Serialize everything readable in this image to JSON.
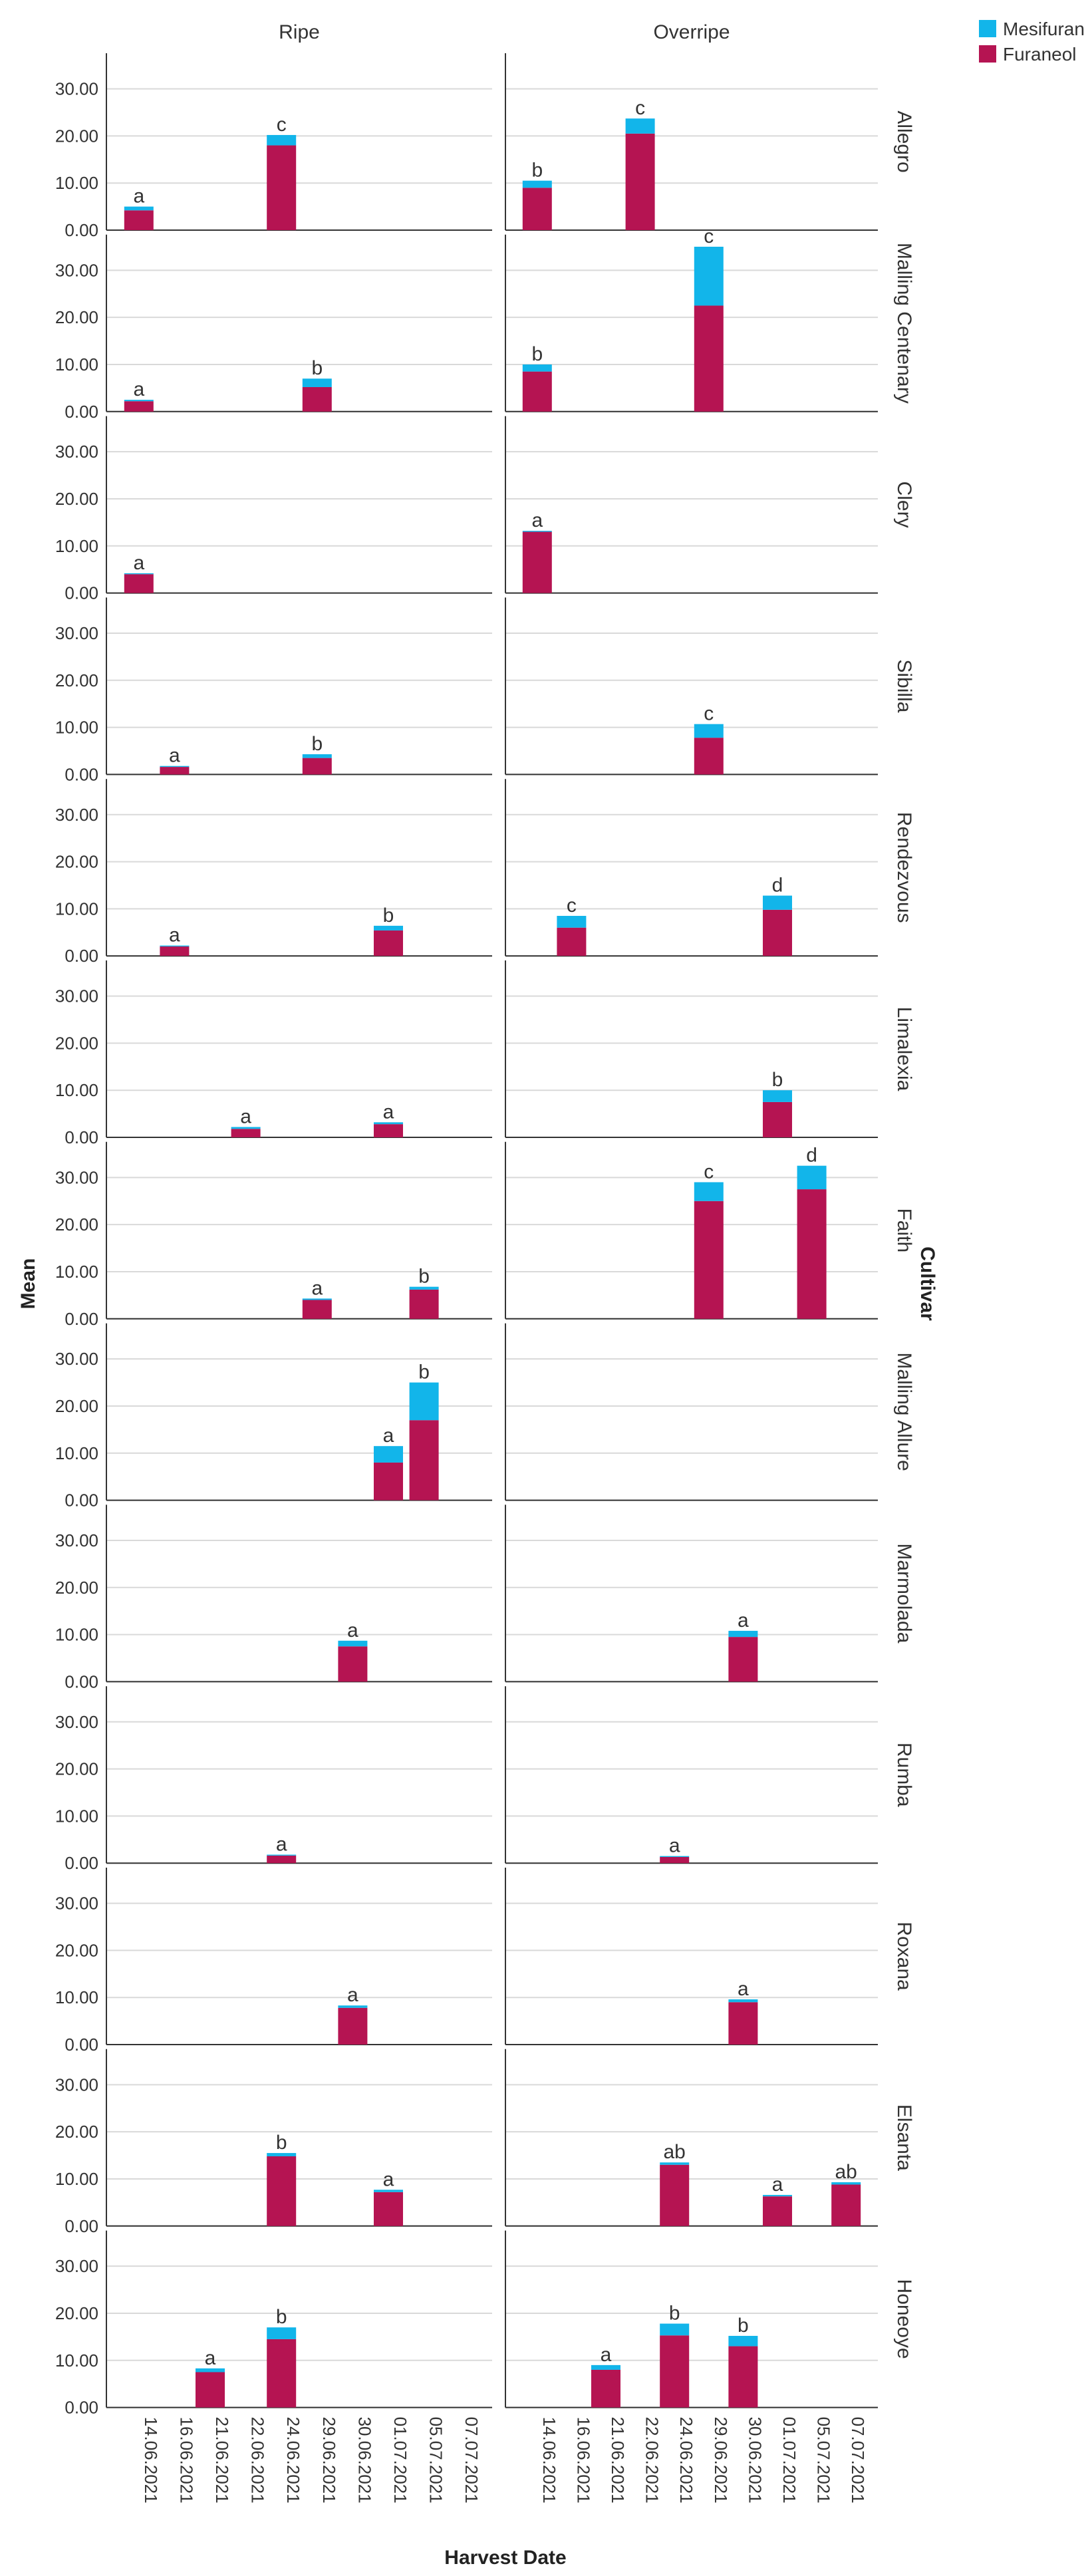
{
  "chart_data": {
    "type": "bar",
    "stacked": true,
    "xlabel": "Harvest Date",
    "ylabel": "Mean",
    "facet_row_label": "Cultivar",
    "columns": [
      "Ripe",
      "Overripe"
    ],
    "ylim": [
      0,
      37
    ],
    "yticks": [
      "0.00",
      "10.00",
      "20.00",
      "30.00"
    ],
    "categories": [
      "14.06.2021",
      "16.06.2021",
      "21.06.2021",
      "22.06.2021",
      "24.06.2021",
      "29.06.2021",
      "30.06.2021",
      "01.07.2021",
      "05.07.2021",
      "07.07.2021"
    ],
    "series_colors": {
      "Furaneol": "#B51452",
      "Mesifuran": "#12B5EA"
    },
    "legend": [
      {
        "name": "Mesifuran",
        "color": "#12B5EA"
      },
      {
        "name": "Furaneol",
        "color": "#B51452"
      }
    ],
    "rows": [
      {
        "cultivar": "Allegro",
        "panels": [
          [
            {
              "date": "14.06.2021",
              "furaneol": 4.2,
              "mesifuran": 0.8,
              "label": "a"
            },
            {
              "date": "24.06.2021",
              "furaneol": 18.0,
              "mesifuran": 2.2,
              "label": "c"
            }
          ],
          [
            {
              "date": "14.06.2021",
              "furaneol": 9.0,
              "mesifuran": 1.5,
              "label": "b"
            },
            {
              "date": "22.06.2021",
              "furaneol": 20.5,
              "mesifuran": 3.2,
              "label": "c"
            }
          ]
        ]
      },
      {
        "cultivar": "Malling Centenary",
        "panels": [
          [
            {
              "date": "14.06.2021",
              "furaneol": 2.2,
              "mesifuran": 0.3,
              "label": "a"
            },
            {
              "date": "29.06.2021",
              "furaneol": 5.2,
              "mesifuran": 1.8,
              "label": "b"
            }
          ],
          [
            {
              "date": "14.06.2021",
              "furaneol": 8.5,
              "mesifuran": 1.5,
              "label": "b"
            },
            {
              "date": "29.06.2021",
              "furaneol": 22.5,
              "mesifuran": 12.5,
              "label": "c"
            }
          ]
        ]
      },
      {
        "cultivar": "Clery",
        "panels": [
          [
            {
              "date": "14.06.2021",
              "furaneol": 4.0,
              "mesifuran": 0.2,
              "label": "a"
            }
          ],
          [
            {
              "date": "14.06.2021",
              "furaneol": 13.0,
              "mesifuran": 0.2,
              "label": "a"
            }
          ]
        ]
      },
      {
        "cultivar": "Sibilla",
        "panels": [
          [
            {
              "date": "16.06.2021",
              "furaneol": 1.6,
              "mesifuran": 0.2,
              "label": "a"
            },
            {
              "date": "29.06.2021",
              "furaneol": 3.5,
              "mesifuran": 0.8,
              "label": "b"
            }
          ],
          [
            {
              "date": "29.06.2021",
              "furaneol": 7.8,
              "mesifuran": 2.9,
              "label": "c"
            }
          ]
        ]
      },
      {
        "cultivar": "Rendezvous",
        "panels": [
          [
            {
              "date": "16.06.2021",
              "furaneol": 2.0,
              "mesifuran": 0.2,
              "label": "a"
            },
            {
              "date": "01.07.2021",
              "furaneol": 5.4,
              "mesifuran": 1.0,
              "label": "b"
            }
          ],
          [
            {
              "date": "16.06.2021",
              "furaneol": 6.0,
              "mesifuran": 2.5,
              "label": "c"
            },
            {
              "date": "01.07.2021",
              "furaneol": 9.8,
              "mesifuran": 3.0,
              "label": "d"
            }
          ]
        ]
      },
      {
        "cultivar": "Limalexia",
        "panels": [
          [
            {
              "date": "22.06.2021",
              "furaneol": 1.8,
              "mesifuran": 0.4,
              "label": "a"
            },
            {
              "date": "01.07.2021",
              "furaneol": 2.8,
              "mesifuran": 0.4,
              "label": "a"
            }
          ],
          [
            {
              "date": "01.07.2021",
              "furaneol": 7.5,
              "mesifuran": 2.5,
              "label": "b"
            }
          ]
        ]
      },
      {
        "cultivar": "Faith",
        "panels": [
          [
            {
              "date": "29.06.2021",
              "furaneol": 4.0,
              "mesifuran": 0.3,
              "label": "a"
            },
            {
              "date": "05.07.2021",
              "furaneol": 6.2,
              "mesifuran": 0.6,
              "label": "b"
            }
          ],
          [
            {
              "date": "29.06.2021",
              "furaneol": 25.0,
              "mesifuran": 4.0,
              "label": "c"
            },
            {
              "date": "05.07.2021",
              "furaneol": 27.5,
              "mesifuran": 5.0,
              "label": "d"
            }
          ]
        ]
      },
      {
        "cultivar": "Malling Allure",
        "panels": [
          [
            {
              "date": "01.07.2021",
              "furaneol": 8.0,
              "mesifuran": 3.5,
              "label": "a"
            },
            {
              "date": "05.07.2021",
              "furaneol": 17.0,
              "mesifuran": 8.0,
              "label": "b"
            }
          ],
          []
        ]
      },
      {
        "cultivar": "Marmolada",
        "panels": [
          [
            {
              "date": "30.06.2021",
              "furaneol": 7.5,
              "mesifuran": 1.2,
              "label": "a"
            }
          ],
          [
            {
              "date": "30.06.2021",
              "furaneol": 9.5,
              "mesifuran": 1.3,
              "label": "a"
            }
          ]
        ]
      },
      {
        "cultivar": "Rumba",
        "panels": [
          [
            {
              "date": "24.06.2021",
              "furaneol": 1.6,
              "mesifuran": 0.2,
              "label": "a"
            }
          ],
          [
            {
              "date": "24.06.2021",
              "furaneol": 1.3,
              "mesifuran": 0.2,
              "label": "a"
            }
          ]
        ]
      },
      {
        "cultivar": "Roxana",
        "panels": [
          [
            {
              "date": "30.06.2021",
              "furaneol": 7.8,
              "mesifuran": 0.5,
              "label": "a"
            }
          ],
          [
            {
              "date": "30.06.2021",
              "furaneol": 9.0,
              "mesifuran": 0.6,
              "label": "a"
            }
          ]
        ]
      },
      {
        "cultivar": "Elsanta",
        "panels": [
          [
            {
              "date": "24.06.2021",
              "furaneol": 14.8,
              "mesifuran": 0.7,
              "label": "b"
            },
            {
              "date": "01.07.2021",
              "furaneol": 7.2,
              "mesifuran": 0.5,
              "label": "a"
            }
          ],
          [
            {
              "date": "24.06.2021",
              "furaneol": 13.0,
              "mesifuran": 0.5,
              "label": "ab"
            },
            {
              "date": "01.07.2021",
              "furaneol": 6.3,
              "mesifuran": 0.3,
              "label": "a"
            },
            {
              "date": "07.07.2021",
              "furaneol": 8.8,
              "mesifuran": 0.5,
              "label": "ab"
            }
          ]
        ]
      },
      {
        "cultivar": "Honeoye",
        "panels": [
          [
            {
              "date": "21.06.2021",
              "furaneol": 7.5,
              "mesifuran": 0.8,
              "label": "a"
            },
            {
              "date": "24.06.2021",
              "furaneol": 14.5,
              "mesifuran": 2.5,
              "label": "b"
            }
          ],
          [
            {
              "date": "21.06.2021",
              "furaneol": 8.0,
              "mesifuran": 1.0,
              "label": "a"
            },
            {
              "date": "24.06.2021",
              "furaneol": 15.3,
              "mesifuran": 2.5,
              "label": "b"
            },
            {
              "date": "30.06.2021",
              "furaneol": 13.0,
              "mesifuran": 2.2,
              "label": "b"
            }
          ]
        ]
      }
    ]
  }
}
